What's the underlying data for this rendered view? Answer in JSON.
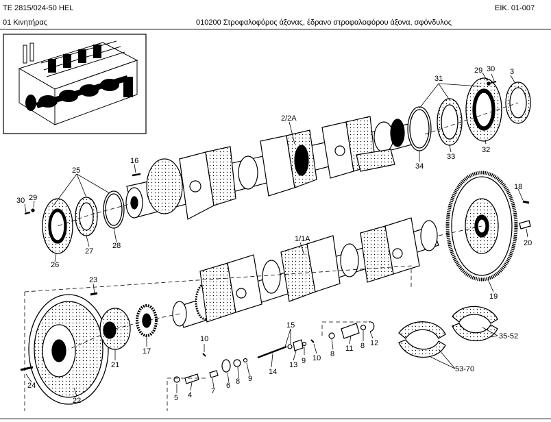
{
  "header": {
    "model": "TE 2815/024-50 HEL",
    "page_ref": "EIK. 01-007",
    "group": "01  Κινητήρας",
    "section": "010200  Στροφαλοφόρος άξονας, έδρανο στροφαλοφόρου άξονα, σφόνδυλος"
  },
  "callouts": {
    "c_3": "3",
    "c_29_top": "29",
    "c_30_top": "30",
    "c_31": "31",
    "c_32": "32",
    "c_33": "33",
    "c_34": "34",
    "c_2_2a": "2/2A",
    "c_16": "16",
    "c_25": "25",
    "c_30_left": "30",
    "c_29_left": "29",
    "c_26": "26",
    "c_27": "27",
    "c_28": "28",
    "c_18": "18",
    "c_20": "20",
    "c_19": "19",
    "c_1_1a": "1/1A",
    "c_23": "23",
    "c_22": "22",
    "c_24": "24",
    "c_21": "21",
    "c_17": "17",
    "c_10_left": "10",
    "c_5": "5",
    "c_4": "4",
    "c_7": "7",
    "c_6": "6",
    "c_8_left": "8",
    "c_9_left": "9",
    "c_14": "14",
    "c_15": "15",
    "c_13": "13",
    "c_9_right": "9",
    "c_10_right": "10",
    "c_8_right": "8",
    "c_11": "11",
    "c_8_far": "8",
    "c_12": "12",
    "c_35_52": "35-52",
    "c_53_70": "53-70"
  },
  "colors": {
    "ink": "#000000",
    "paper": "#ffffff"
  }
}
